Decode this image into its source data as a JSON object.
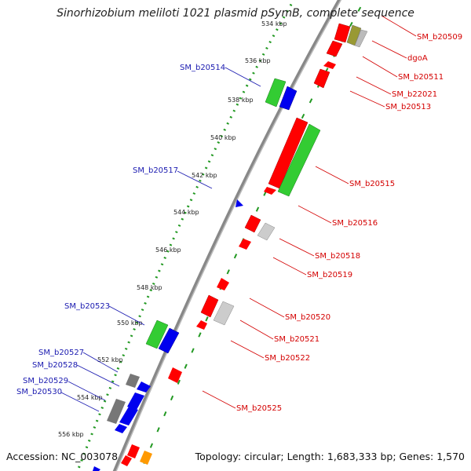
{
  "title": "Sinorhizobium meliloti 1021 plasmid pSymB, complete sequence",
  "footer": {
    "accession": "Accession: NC_003078",
    "summary": "Topology: circular; Length: 1,683,333 bp; Genes: 1,570"
  },
  "tick_labels": [
    "534 kbp",
    "536 kbp",
    "538 kbp",
    "540 kbp",
    "542 kbp",
    "544 kbp",
    "546 kbp",
    "548 kbp",
    "550 kbp",
    "552 kbp",
    "554 kbp",
    "556 kbp"
  ],
  "left_labels": [
    "SM_b20514",
    "SM_b20517",
    "SM_b20523",
    "SM_b20527",
    "SM_b20528",
    "SM_b20529",
    "SM_b20530"
  ],
  "right_labels": [
    "SM_b20509",
    "dgoA",
    "SM_b20511",
    "SM_b22021",
    "SM_b20513",
    "SM_b20515",
    "SM_b20516",
    "SM_b20518",
    "SM_b20519",
    "SM_b20520",
    "SM_b20521",
    "SM_b20522",
    "SM_b20525"
  ],
  "colors": {
    "forward_gene": "#ff0000",
    "reverse_gene": "#0000ee",
    "green_gene": "#33cc33",
    "gray_gene": "#bbbbbb",
    "dark_gray_gene": "#777777",
    "olive_gene": "#999933",
    "orange_gene": "#ff9900",
    "backbone": "#888888",
    "tick_dots": "#229922",
    "left_label_color": "#1a1ab0",
    "right_label_color": "#d40000"
  }
}
